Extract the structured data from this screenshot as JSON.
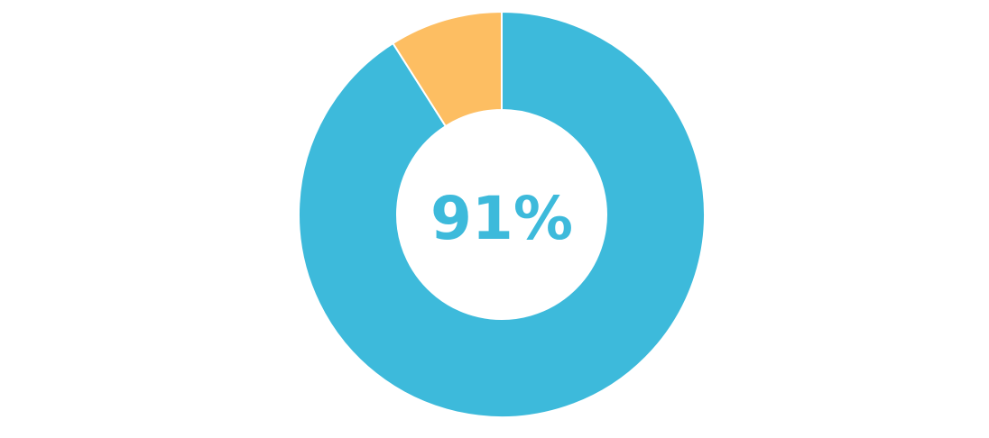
{
  "chart_data": {
    "type": "pie",
    "center_label": "91%",
    "slices": [
      {
        "value": 91,
        "color": "#3DBADB"
      },
      {
        "value": 9,
        "color": "#FDBE62"
      }
    ],
    "legend": "none",
    "grid": false
  },
  "colors": {
    "primary": "#3DBADB",
    "secondary": "#FDBE62",
    "stroke": "#ffffff"
  }
}
